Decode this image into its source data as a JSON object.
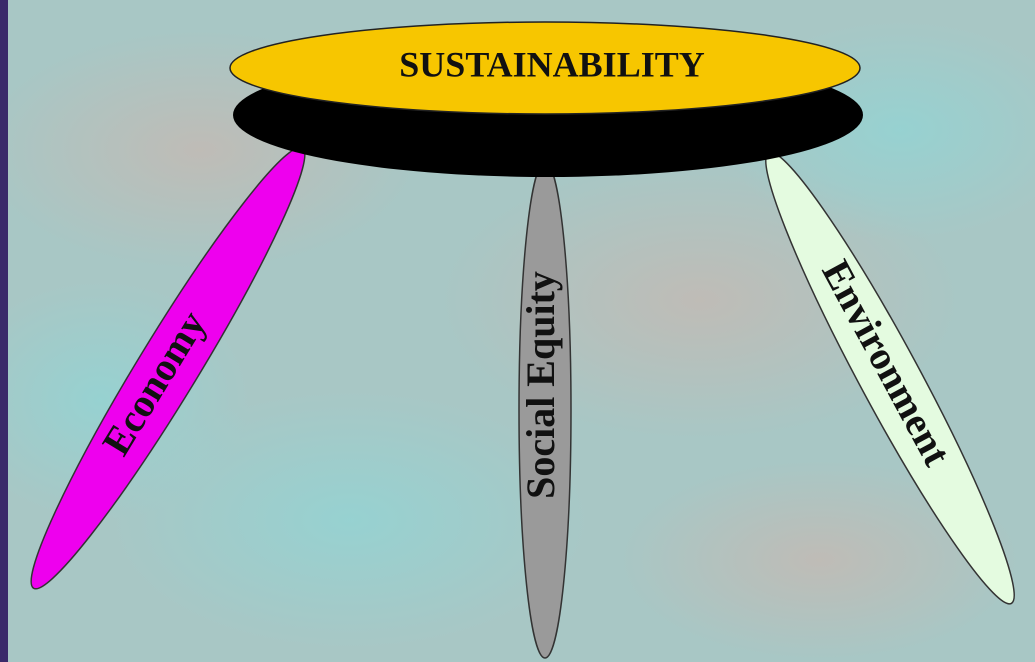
{
  "title": "SUSTAINABILITY",
  "legs": [
    {
      "label": "Economy"
    },
    {
      "label": "Social Equity"
    },
    {
      "label": "Environment"
    }
  ]
}
